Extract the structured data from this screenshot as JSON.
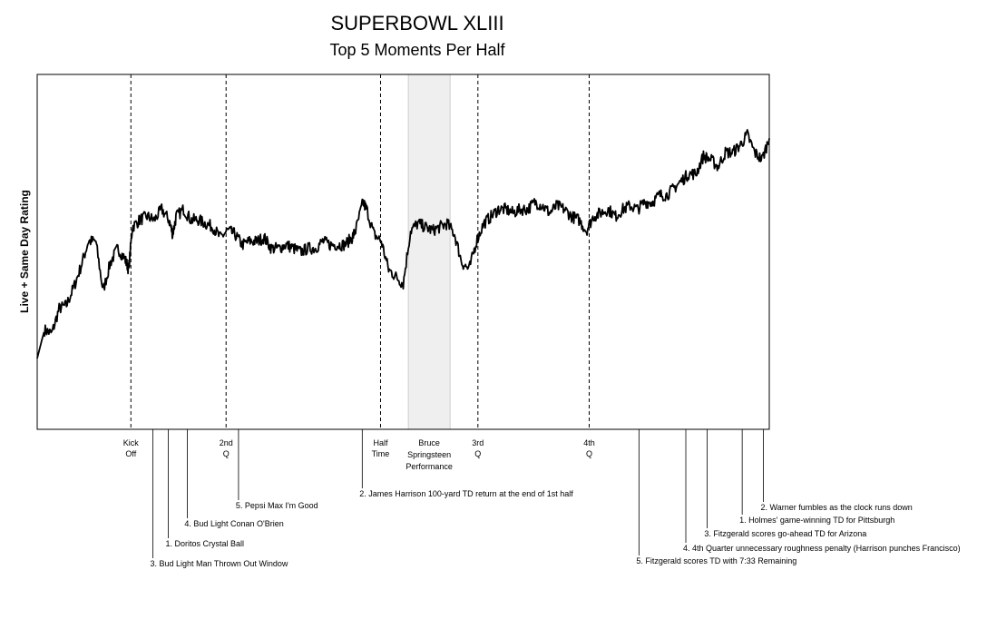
{
  "chart_data": {
    "type": "line",
    "title": "SUPERBOWL XLIII",
    "subtitle": "Top 5 Moments Per Half",
    "xlabel": "",
    "ylabel": "Live + Same Day Rating",
    "grid": false,
    "x_range": [
      0,
      100
    ],
    "ylim": [
      0,
      100
    ],
    "period_markers": [
      {
        "x": 12.8,
        "lines": [
          "Kick",
          "Off"
        ]
      },
      {
        "x": 25.8,
        "lines": [
          "2nd",
          "Q"
        ]
      },
      {
        "x": 46.9,
        "lines": [
          "Half",
          "Time"
        ]
      },
      {
        "x": 60.2,
        "lines": [
          "3rd",
          "Q"
        ]
      },
      {
        "x": 75.4,
        "lines": [
          "4th",
          "Q"
        ]
      }
    ],
    "shaded_region": {
      "x_start": 50.7,
      "x_end": 56.4,
      "lines": [
        "Bruce",
        "Springsteen",
        "Performance"
      ]
    },
    "moments": [
      {
        "x": 15.8,
        "label": "3. Bud Light Man Thrown Out Window",
        "level": 0
      },
      {
        "x": 17.9,
        "label": "1. Doritos Crystal Ball",
        "level": 1
      },
      {
        "x": 20.5,
        "label": "4. Bud Light Conan O'Brien",
        "level": 2
      },
      {
        "x": 27.5,
        "label": "5. Pepsi Max I'm Good",
        "level": 3
      },
      {
        "x": 44.4,
        "label": "2. James Harrison 100-yard TD return at the end of 1st half",
        "level": 4
      },
      {
        "x": 82.2,
        "label": "5. Fitzgerald scores TD with 7:33 Remaining",
        "level": 0
      },
      {
        "x": 88.6,
        "label": "4. 4th Quarter unnecessary roughness penalty (Harrison punches Francisco)",
        "level": 1
      },
      {
        "x": 91.5,
        "label": "3. Fitzgerald scores go-ahead TD for Arizona",
        "level": 2
      },
      {
        "x": 96.3,
        "label": "1. Holmes' game-winning TD for Pittsburgh",
        "level": 3
      },
      {
        "x": 99.2,
        "label": "2. Warner fumbles as the clock runs down",
        "level": 4
      }
    ],
    "series": [
      {
        "values": [
          [
            0,
            20
          ],
          [
            1,
            28
          ],
          [
            2,
            27
          ],
          [
            3,
            34
          ],
          [
            4,
            35
          ],
          [
            5,
            40
          ],
          [
            6,
            46
          ],
          [
            7,
            53
          ],
          [
            8,
            53
          ],
          [
            9,
            39
          ],
          [
            10,
            47
          ],
          [
            11,
            51
          ],
          [
            12,
            48
          ],
          [
            12.5,
            45
          ],
          [
            13,
            57
          ],
          [
            14,
            59
          ],
          [
            15,
            60
          ],
          [
            16,
            59
          ],
          [
            17,
            62
          ],
          [
            18,
            59
          ],
          [
            18.5,
            55
          ],
          [
            19,
            60
          ],
          [
            20,
            62
          ],
          [
            21,
            59
          ],
          [
            22,
            59
          ],
          [
            23,
            58
          ],
          [
            24,
            57
          ],
          [
            25,
            54
          ],
          [
            26,
            56
          ],
          [
            27,
            55
          ],
          [
            28,
            52
          ],
          [
            29,
            53
          ],
          [
            30,
            53
          ],
          [
            31,
            54
          ],
          [
            32,
            51
          ],
          [
            33,
            51
          ],
          [
            34,
            52
          ],
          [
            35,
            51
          ],
          [
            36,
            50
          ],
          [
            37,
            51
          ],
          [
            38,
            51
          ],
          [
            39,
            53
          ],
          [
            40,
            52
          ],
          [
            41,
            52
          ],
          [
            42,
            52
          ],
          [
            43,
            54
          ],
          [
            43.5,
            56
          ],
          [
            44.5,
            64
          ],
          [
            45,
            62
          ],
          [
            46,
            55
          ],
          [
            47,
            53
          ],
          [
            48,
            45
          ],
          [
            49,
            43
          ],
          [
            50,
            41
          ],
          [
            51,
            56
          ],
          [
            52,
            58
          ],
          [
            53,
            57
          ],
          [
            54,
            56
          ],
          [
            55,
            57
          ],
          [
            56,
            58
          ],
          [
            57,
            55
          ],
          [
            58,
            47
          ],
          [
            59,
            45
          ],
          [
            60,
            53
          ],
          [
            61,
            58
          ],
          [
            62,
            60
          ],
          [
            63,
            62
          ],
          [
            64,
            62
          ],
          [
            65,
            61
          ],
          [
            66,
            62
          ],
          [
            67,
            62
          ],
          [
            68,
            64
          ],
          [
            69,
            63
          ],
          [
            70,
            61
          ],
          [
            71,
            63
          ],
          [
            72,
            62
          ],
          [
            73,
            60
          ],
          [
            74,
            59
          ],
          [
            75,
            56
          ],
          [
            76,
            60
          ],
          [
            77,
            61
          ],
          [
            78,
            62
          ],
          [
            79,
            60
          ],
          [
            80,
            62
          ],
          [
            81,
            63
          ],
          [
            82,
            62
          ],
          [
            83,
            64
          ],
          [
            84,
            64
          ],
          [
            85,
            66
          ],
          [
            86,
            66
          ],
          [
            87,
            68
          ],
          [
            88,
            70
          ],
          [
            89,
            72
          ],
          [
            90,
            72
          ],
          [
            91,
            77
          ],
          [
            92,
            76
          ],
          [
            93,
            74
          ],
          [
            94,
            78
          ],
          [
            95,
            78
          ],
          [
            96,
            80
          ],
          [
            97,
            83
          ],
          [
            98,
            78
          ],
          [
            99,
            76
          ],
          [
            100,
            82
          ]
        ]
      }
    ]
  }
}
